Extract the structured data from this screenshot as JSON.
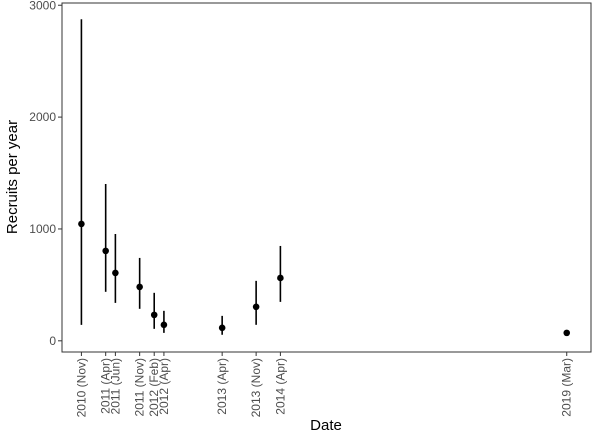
{
  "chart_data": {
    "type": "errorbar",
    "x_label": "Date",
    "y_label": "Recruits per year",
    "x": [
      "2010-11",
      "2011-04",
      "2011-06",
      "2011-11",
      "2012-02",
      "2012-04",
      "2013-04",
      "2013-11",
      "2014-04",
      "2019-03"
    ],
    "series": [
      {
        "color": "#000000",
        "values": [
          1045,
          804,
          607,
          482,
          232,
          143,
          116,
          304,
          562,
          71
        ],
        "lower": [
          143,
          438,
          339,
          286,
          107,
          71,
          54,
          143,
          348,
          null
        ],
        "upper": [
          2875,
          1402,
          955,
          741,
          429,
          268,
          223,
          536,
          848,
          null
        ]
      }
    ],
    "xlim": [
      "2010-07",
      "2019-08"
    ],
    "xticks": [
      {
        "value": "2010-11",
        "label": "2010 (Nov)"
      },
      {
        "value": "2011-04",
        "label": "2011 (Apr)"
      },
      {
        "value": "2011-06",
        "label": "2011 (Jun)"
      },
      {
        "value": "2011-11",
        "label": "2011 (Nov)"
      },
      {
        "value": "2012-02",
        "label": "2012 (Feb)"
      },
      {
        "value": "2012-04",
        "label": "2012 (Apr)"
      },
      {
        "value": "2013-04",
        "label": "2013 (Apr)"
      },
      {
        "value": "2013-11",
        "label": "2013 (Nov)"
      },
      {
        "value": "2014-04",
        "label": "2014 (Apr)"
      },
      {
        "value": "2019-03",
        "label": "2019 (Mar)"
      }
    ],
    "ylim": [
      -100,
      3020
    ],
    "yticks": [
      0,
      1000,
      2000,
      3000
    ]
  }
}
